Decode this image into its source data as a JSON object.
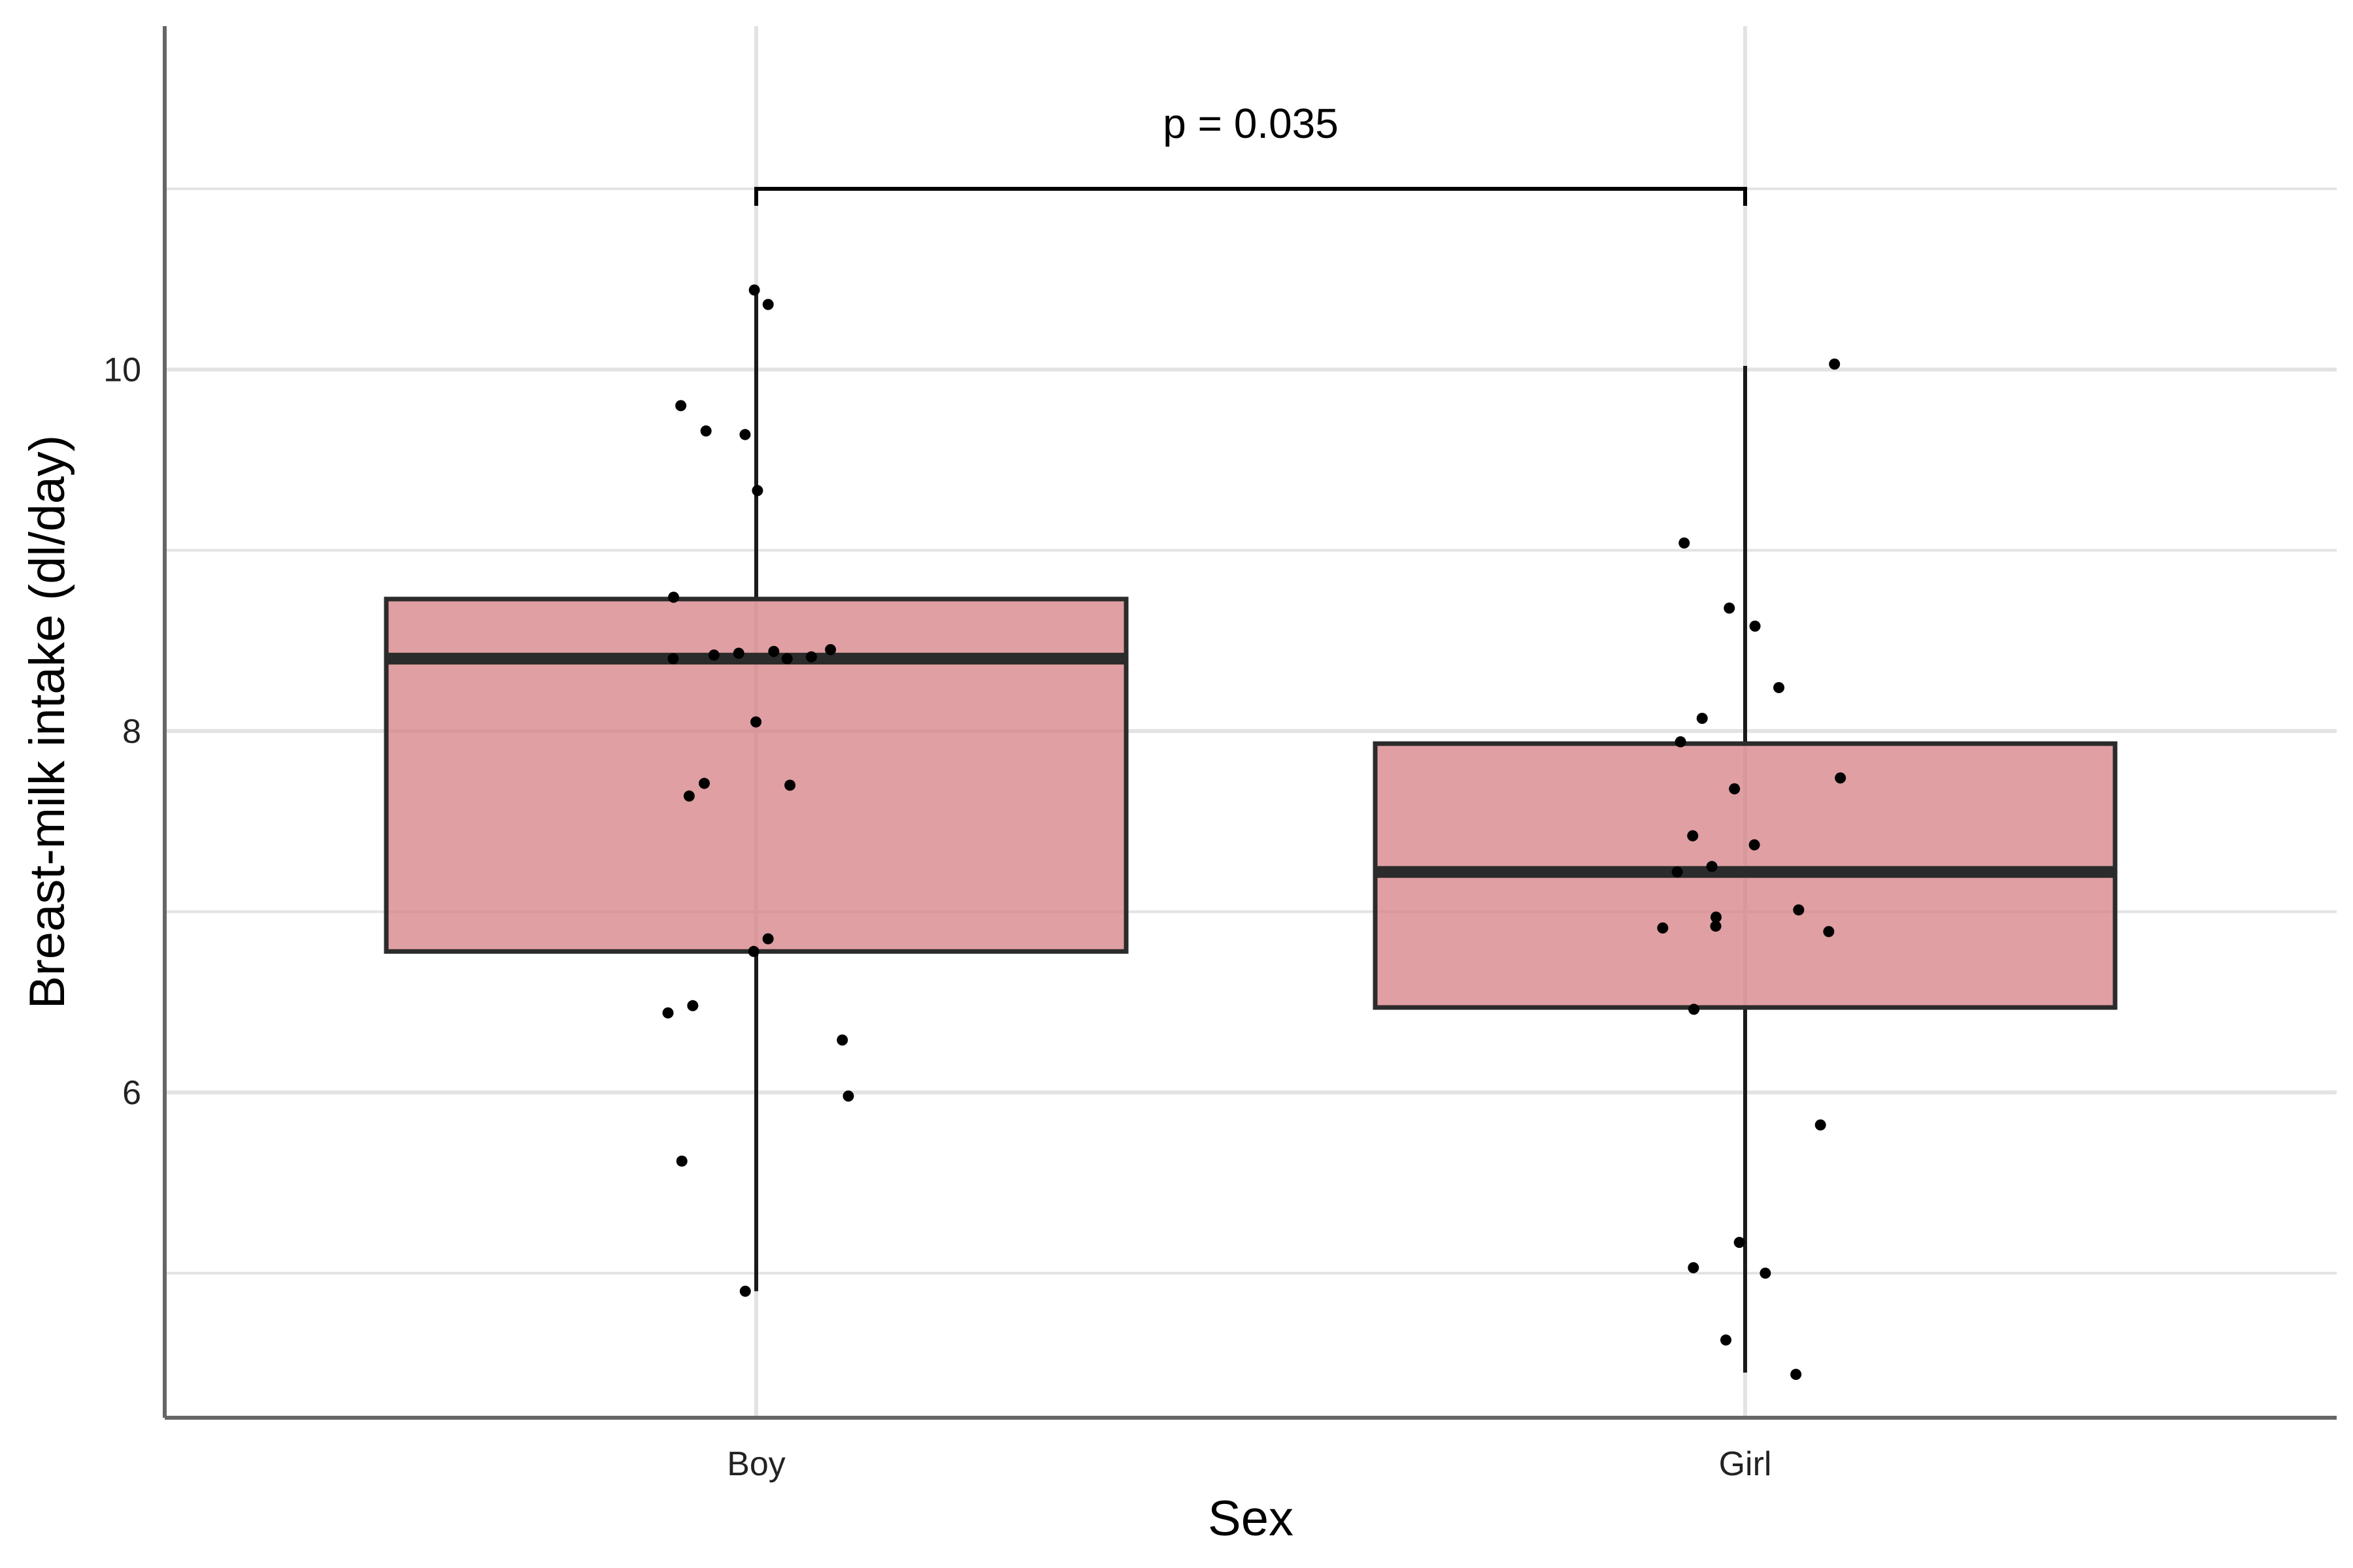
{
  "chart_data": {
    "type": "box",
    "xlabel": "Sex",
    "ylabel": "Breast-milk intake (dl/day)",
    "categories": [
      "Boy",
      "Girl"
    ],
    "yticks": [
      6,
      8,
      10
    ],
    "ylim": [
      4.2,
      11.9
    ],
    "grid": true,
    "boxes": [
      {
        "category": "Boy",
        "whisker_low": 4.9,
        "q1": 6.78,
        "median": 8.4,
        "q3": 8.73,
        "whisker_high": 10.42
      },
      {
        "category": "Girl",
        "whisker_low": 4.45,
        "q1": 6.47,
        "median": 7.22,
        "q3": 7.93,
        "whisker_high": 10.02
      }
    ],
    "points": [
      {
        "category": "Boy",
        "values": [
          10.44,
          10.36,
          9.8,
          9.66,
          9.64,
          9.33,
          8.74,
          8.45,
          8.44,
          8.43,
          8.42,
          8.41,
          8.4,
          8.4,
          8.05,
          7.71,
          7.7,
          7.64,
          6.85,
          6.78,
          6.48,
          6.44,
          6.29,
          5.98,
          5.62,
          4.9
        ]
      },
      {
        "category": "Girl",
        "values": [
          10.03,
          9.04,
          8.68,
          8.58,
          8.24,
          8.07,
          7.94,
          7.74,
          7.68,
          7.42,
          7.37,
          7.25,
          7.22,
          7.01,
          6.97,
          6.92,
          6.91,
          6.89,
          6.46,
          5.82,
          5.17,
          5.03,
          5.0,
          4.63,
          4.44
        ]
      }
    ],
    "comparison": {
      "from": "Boy",
      "to": "Girl",
      "y": 11.0,
      "label": "p = 0.035"
    },
    "colors": {
      "box_fill": "#d57f83",
      "box_stroke": "#2b2b2b",
      "points": "#000000",
      "grid": "#e3e3e3",
      "axis": "#666666"
    }
  }
}
